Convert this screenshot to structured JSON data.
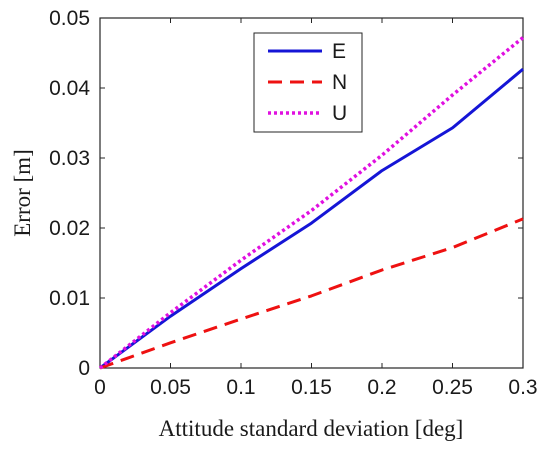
{
  "chart_data": {
    "type": "line",
    "xlabel": "Attitude standard deviation [deg]",
    "ylabel": "Error [m]",
    "xlim": [
      0,
      0.3
    ],
    "ylim": [
      0,
      0.05
    ],
    "x_ticks": [
      0,
      0.05,
      0.1,
      0.15,
      0.2,
      0.25,
      0.3
    ],
    "x_tick_labels": [
      "0",
      "0.05",
      "0.1",
      "0.15",
      "0.2",
      "0.25",
      "0.3"
    ],
    "y_ticks": [
      0,
      0.01,
      0.02,
      0.03,
      0.04,
      0.05
    ],
    "y_tick_labels": [
      "0",
      "0.01",
      "0.02",
      "0.03",
      "0.04",
      "0.05"
    ],
    "grid": false,
    "legend_position": "top-center",
    "x": [
      0,
      0.05,
      0.1,
      0.15,
      0.2,
      0.25,
      0.3
    ],
    "series": [
      {
        "name": "E",
        "values": [
          0,
          0.0074,
          0.0142,
          0.0207,
          0.0282,
          0.0343,
          0.0427
        ],
        "color": "#1515d6",
        "style": "solid"
      },
      {
        "name": "N",
        "values": [
          0,
          0.0036,
          0.007,
          0.0103,
          0.014,
          0.0172,
          0.0213
        ],
        "color": "#ee1111",
        "style": "dashed"
      },
      {
        "name": "U",
        "values": [
          0,
          0.0079,
          0.0154,
          0.0225,
          0.0304,
          0.039,
          0.0472
        ],
        "color": "#e010e0",
        "style": "dotted"
      }
    ]
  }
}
